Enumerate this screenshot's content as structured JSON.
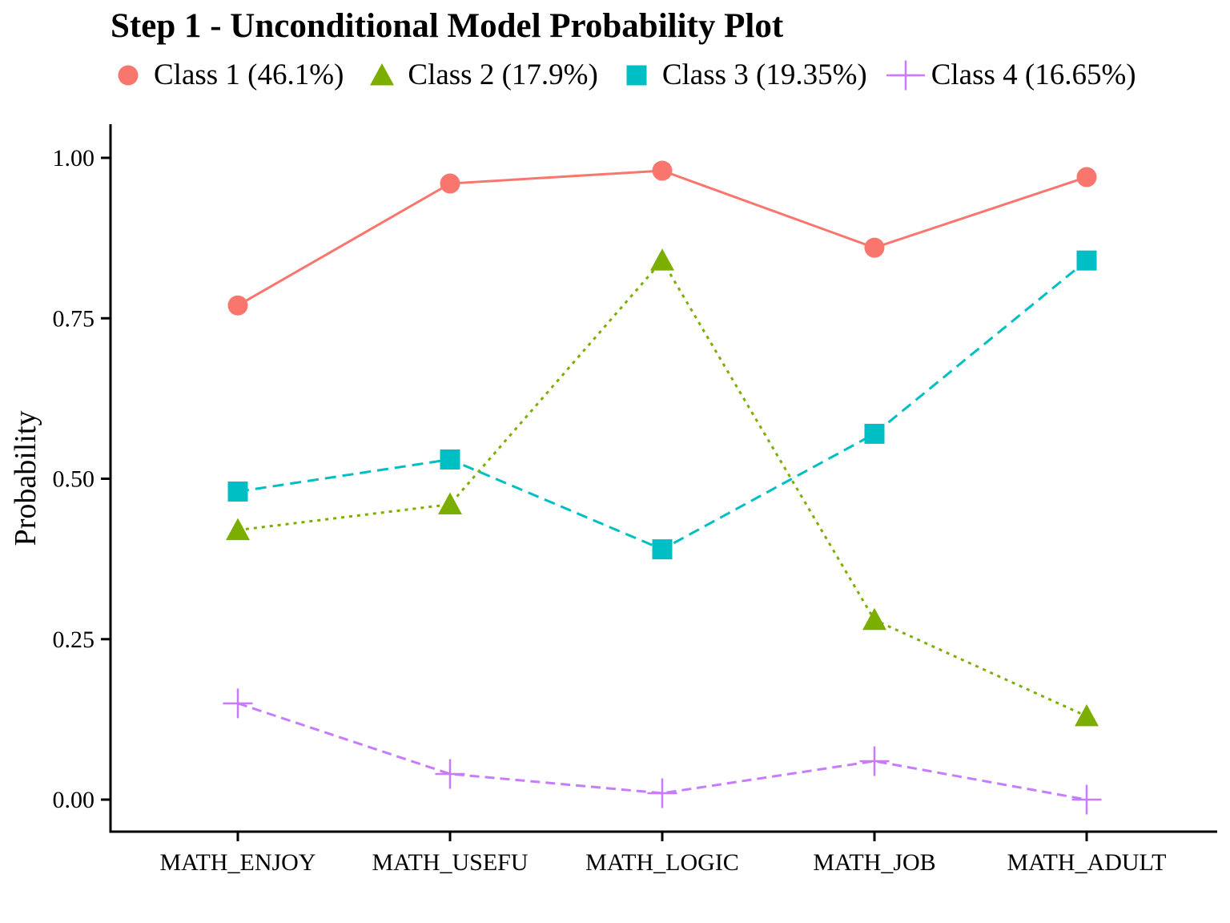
{
  "chart_data": {
    "type": "line",
    "title": "Step 1 - Unconditional Model Probability Plot",
    "xlabel": "",
    "ylabel": "Probability",
    "categories": [
      "MATH_ENJOY",
      "MATH_USEFU",
      "MATH_LOGIC",
      "MATH_JOB",
      "MATH_ADULT"
    ],
    "ylim": [
      0.0,
      1.0
    ],
    "yticks": [
      "0.00",
      "0.25",
      "0.50",
      "0.75",
      "1.00"
    ],
    "grid": false,
    "legend_position": "top-left",
    "axis_color": "#000000",
    "series": [
      {
        "name": "Class 1 (46.1%)",
        "color": "#F8766D",
        "marker": "circle",
        "linestyle": "solid",
        "values": [
          0.77,
          0.96,
          0.98,
          0.86,
          0.97
        ]
      },
      {
        "name": "Class 2 (17.9%)",
        "color": "#7CAE00",
        "marker": "triangle",
        "linestyle": "dotted",
        "values": [
          0.42,
          0.46,
          0.84,
          0.28,
          0.13
        ]
      },
      {
        "name": "Class 3 (19.35%)",
        "color": "#00BFC4",
        "marker": "square",
        "linestyle": "dashed",
        "values": [
          0.48,
          0.53,
          0.39,
          0.57,
          0.84
        ]
      },
      {
        "name": "Class 4 (16.65%)",
        "color": "#C77CFF",
        "marker": "plus",
        "linestyle": "longdash",
        "values": [
          0.15,
          0.04,
          0.01,
          0.06,
          0.0
        ]
      }
    ]
  }
}
